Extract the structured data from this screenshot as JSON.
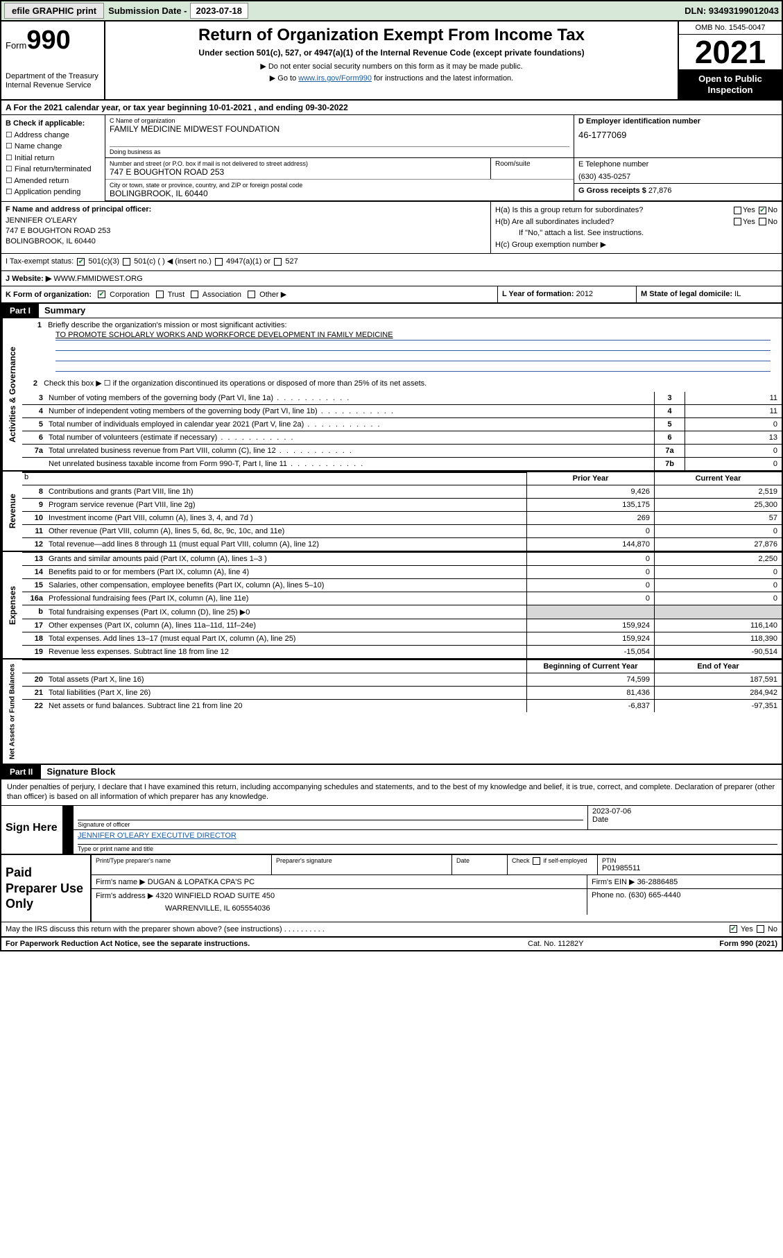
{
  "topbar": {
    "efile": "efile GRAPHIC",
    "print": "print",
    "sub_lbl": "Submission Date -",
    "sub_date": "2023-07-18",
    "dln": "DLN: 93493199012043"
  },
  "hdr": {
    "form_sm": "Form",
    "form_no": "990",
    "dept": "Department of the Treasury Internal Revenue Service",
    "title": "Return of Organization Exempt From Income Tax",
    "sub": "Under section 501(c), 527, or 4947(a)(1) of the Internal Revenue Code (except private foundations)",
    "note1": "Do not enter social security numbers on this form as it may be made public.",
    "note2_a": "Go to ",
    "note2_link": "www.irs.gov/Form990",
    "note2_b": " for instructions and the latest information.",
    "omb": "OMB No. 1545-0047",
    "year": "2021",
    "open": "Open to Public Inspection"
  },
  "line_a": "A For the 2021 calendar year, or tax year beginning 10-01-2021  , and ending 09-30-2022",
  "B": {
    "head": "B Check if applicable:",
    "items": [
      "Address change",
      "Name change",
      "Initial return",
      "Final return/terminated",
      "Amended return",
      "Application pending"
    ]
  },
  "C": {
    "lbl": "C Name of organization",
    "name": "FAMILY MEDICINE MIDWEST FOUNDATION",
    "dba_lbl": "Doing business as",
    "dba": "",
    "ns_lbl": "Number and street (or P.O. box if mail is not delivered to street address)",
    "ns": "747 E BOUGHTON ROAD 253",
    "room_lbl": "Room/suite",
    "city_lbl": "City or town, state or province, country, and ZIP or foreign postal code",
    "city": "BOLINGBROOK, IL  60440"
  },
  "D": {
    "lbl": "D Employer identification number",
    "val": "46-1777069"
  },
  "E": {
    "lbl": "E Telephone number",
    "val": "(630) 435-0257"
  },
  "G": {
    "lbl": "G Gross receipts $",
    "val": "27,876"
  },
  "F": {
    "lbl": "F  Name and address of principal officer:",
    "name": "JENNIFER O'LEARY",
    "addr1": "747 E BOUGHTON ROAD 253",
    "addr2": "BOLINGBROOK, IL  60440"
  },
  "H": {
    "a": "H(a)  Is this a group return for subordinates?",
    "a_yes": "Yes",
    "a_no": "No",
    "b": "H(b)  Are all subordinates included?",
    "b_yes": "Yes",
    "b_no": "No",
    "note": "If \"No,\" attach a list. See instructions.",
    "c": "H(c)  Group exemption number ▶"
  },
  "I": {
    "lbl": "I    Tax-exempt status:",
    "o1": "501(c)(3)",
    "o2": "501(c) (  ) ◀ (insert no.)",
    "o3": "4947(a)(1) or",
    "o4": "527"
  },
  "J": {
    "lbl": "J   Website: ▶",
    "val": "WWW.FMMIDWEST.ORG"
  },
  "K": {
    "lbl": "K Form of organization:",
    "o1": "Corporation",
    "o2": "Trust",
    "o3": "Association",
    "o4": "Other ▶"
  },
  "L": {
    "lbl": "L Year of formation:",
    "val": "2012"
  },
  "M": {
    "lbl": "M State of legal domicile:",
    "val": "IL"
  },
  "partI": {
    "hdr": "Part I",
    "title": "Summary",
    "briefly_lbl": "Briefly describe the organization's mission or most significant activities:",
    "mission": "TO PROMOTE SCHOLARLY WORKS AND WORKFORCE DEVELOPMENT IN FAMILY MEDICINE",
    "chk2": "Check this box ▶ ☐  if the organization discontinued its operations or disposed of more than 25% of its net assets.",
    "side": {
      "gov": "Activities & Governance",
      "rev": "Revenue",
      "exp": "Expenses",
      "na": "Net Assets or Fund Balances"
    },
    "gov": [
      {
        "n": "3",
        "t": "Number of voting members of the governing body (Part VI, line 1a)",
        "bn": "3",
        "v": "11"
      },
      {
        "n": "4",
        "t": "Number of independent voting members of the governing body (Part VI, line 1b)",
        "bn": "4",
        "v": "11"
      },
      {
        "n": "5",
        "t": "Total number of individuals employed in calendar year 2021 (Part V, line 2a)",
        "bn": "5",
        "v": "0"
      },
      {
        "n": "6",
        "t": "Total number of volunteers (estimate if necessary)",
        "bn": "6",
        "v": "13"
      },
      {
        "n": "7a",
        "t": "Total unrelated business revenue from Part VIII, column (C), line 12",
        "bn": "7a",
        "v": "0"
      },
      {
        "n": "",
        "t": "Net unrelated business taxable income from Form 990-T, Part I, line 11",
        "bn": "7b",
        "v": "0"
      }
    ],
    "col_prior": "Prior Year",
    "col_curr": "Current Year",
    "rev": [
      {
        "n": "8",
        "t": "Contributions and grants (Part VIII, line 1h)",
        "p": "9,426",
        "c": "2,519"
      },
      {
        "n": "9",
        "t": "Program service revenue (Part VIII, line 2g)",
        "p": "135,175",
        "c": "25,300"
      },
      {
        "n": "10",
        "t": "Investment income (Part VIII, column (A), lines 3, 4, and 7d )",
        "p": "269",
        "c": "57"
      },
      {
        "n": "11",
        "t": "Other revenue (Part VIII, column (A), lines 5, 6d, 8c, 9c, 10c, and 11e)",
        "p": "0",
        "c": "0"
      },
      {
        "n": "12",
        "t": "Total revenue—add lines 8 through 11 (must equal Part VIII, column (A), line 12)",
        "p": "144,870",
        "c": "27,876"
      }
    ],
    "exp": [
      {
        "n": "13",
        "t": "Grants and similar amounts paid (Part IX, column (A), lines 1–3 )",
        "p": "0",
        "c": "2,250"
      },
      {
        "n": "14",
        "t": "Benefits paid to or for members (Part IX, column (A), line 4)",
        "p": "0",
        "c": "0"
      },
      {
        "n": "15",
        "t": "Salaries, other compensation, employee benefits (Part IX, column (A), lines 5–10)",
        "p": "0",
        "c": "0"
      },
      {
        "n": "16a",
        "t": "Professional fundraising fees (Part IX, column (A), line 11e)",
        "p": "0",
        "c": "0"
      },
      {
        "n": "b",
        "t": "Total fundraising expenses (Part IX, column (D), line 25) ▶0",
        "p": "",
        "c": "",
        "grey": true
      },
      {
        "n": "17",
        "t": "Other expenses (Part IX, column (A), lines 11a–11d, 11f–24e)",
        "p": "159,924",
        "c": "116,140"
      },
      {
        "n": "18",
        "t": "Total expenses. Add lines 13–17 (must equal Part IX, column (A), line 25)",
        "p": "159,924",
        "c": "118,390"
      },
      {
        "n": "19",
        "t": "Revenue less expenses. Subtract line 18 from line 12",
        "p": "-15,054",
        "c": "-90,514"
      }
    ],
    "col_beg": "Beginning of Current Year",
    "col_end": "End of Year",
    "na": [
      {
        "n": "20",
        "t": "Total assets (Part X, line 16)",
        "p": "74,599",
        "c": "187,591"
      },
      {
        "n": "21",
        "t": "Total liabilities (Part X, line 26)",
        "p": "81,436",
        "c": "284,942"
      },
      {
        "n": "22",
        "t": "Net assets or fund balances. Subtract line 21 from line 20",
        "p": "-6,837",
        "c": "-97,351"
      }
    ]
  },
  "partII": {
    "hdr": "Part II",
    "title": "Signature Block",
    "intro": "Under penalties of perjury, I declare that I have examined this return, including accompanying schedules and statements, and to the best of my knowledge and belief, it is true, correct, and complete. Declaration of preparer (other than officer) is based on all information of which preparer has any knowledge.",
    "sign_here": "Sign Here",
    "sig_lbl": "Signature of officer",
    "sig_date": "2023-07-06",
    "date_lbl": "Date",
    "name": "JENNIFER O'LEARY  EXECUTIVE DIRECTOR",
    "name_lbl": "Type or print name and title",
    "paid": "Paid Preparer Use Only",
    "h1": "Print/Type preparer's name",
    "h2": "Preparer's signature",
    "h3": "Date",
    "h4a": "Check",
    "h4b": "if self-employed",
    "h5": "PTIN",
    "ptin": "P01985511",
    "firm_name_lbl": "Firm's name   ▶",
    "firm_name": "DUGAN & LOPATKA CPA'S PC",
    "firm_ein_lbl": "Firm's EIN ▶",
    "firm_ein": "36-2886485",
    "firm_addr_lbl": "Firm's address ▶",
    "firm_addr1": "4320 WINFIELD ROAD SUITE 450",
    "firm_addr2": "WARRENVILLE, IL  605554036",
    "phone_lbl": "Phone no.",
    "phone": "(630) 665-4440",
    "discuss": "May the IRS discuss this return with the preparer shown above? (see instructions)",
    "d_yes": "Yes",
    "d_no": "No"
  },
  "foot": {
    "l": "For Paperwork Reduction Act Notice, see the separate instructions.",
    "m": "Cat. No. 11282Y",
    "r": "Form 990 (2021)"
  }
}
